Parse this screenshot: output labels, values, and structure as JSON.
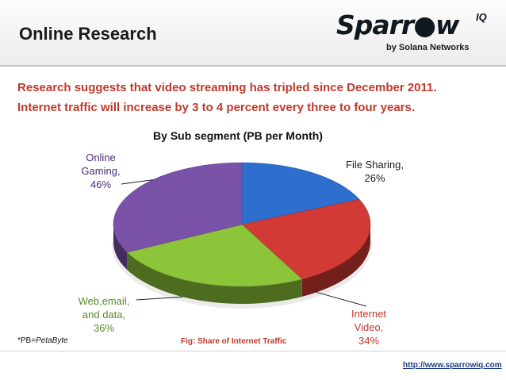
{
  "slide_title": "Online Research",
  "logo": {
    "brand": "Sparr●w",
    "suffix": "IQ",
    "byline": "by Solana Networks"
  },
  "intro_lines": [
    "Research suggests that video streaming has tripled since December 2011.",
    "Internet traffic will increase by 3 to 4 percent every three to four years."
  ],
  "chart_data": {
    "type": "pie",
    "title": "By Sub segment (PB per Month)",
    "slices": [
      {
        "label": "File Sharing,",
        "pct_label": "26%",
        "value": 26,
        "color": "#2e6ecf"
      },
      {
        "label": "Internet Video,",
        "pct_label": "34%",
        "value": 34,
        "color": "#d13a35"
      },
      {
        "label": "Web,email, and data,",
        "pct_label": "36%",
        "value": 36,
        "color": "#8cc43a"
      },
      {
        "label": "Online Gaming,",
        "pct_label": "46%",
        "value": 46,
        "color": "#7a52a8"
      }
    ],
    "label_colors": {
      "file_sharing": "#1a1a1a",
      "online_gaming": "#4a2a7a",
      "web": "#5b8a2a",
      "internet_video": "#c0392b"
    }
  },
  "footnote": {
    "prefix": "*PB=",
    "term": "PetaByte"
  },
  "caption": "Fig: Share of Internet Traffic",
  "footer_url": "http://www.sparrowiq.com"
}
